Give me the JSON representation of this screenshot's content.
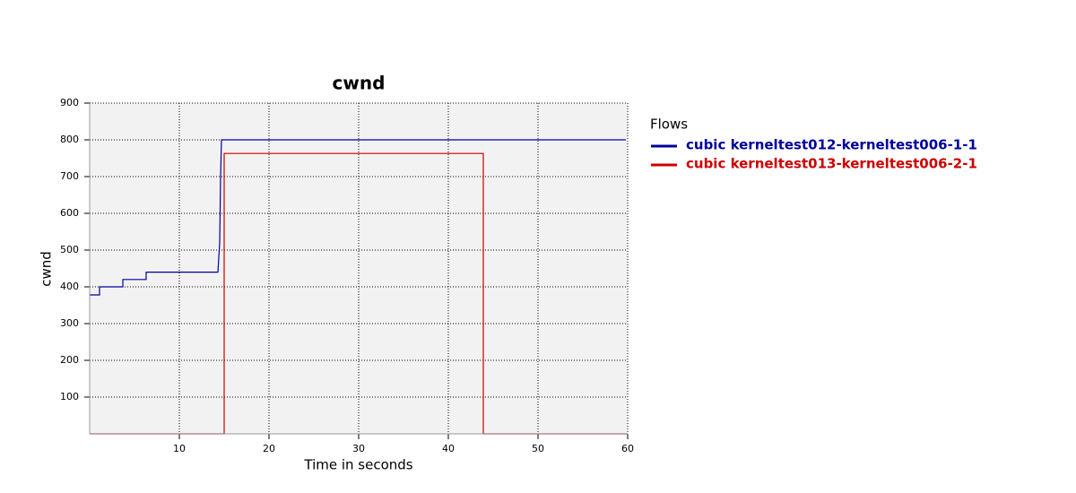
{
  "chart_data": {
    "type": "line",
    "title": "cwnd",
    "x_label": "Time in seconds",
    "y_label": "cwnd",
    "legend_title": "Flows",
    "xlim": [
      0,
      60
    ],
    "xticks": [
      10,
      20,
      30,
      40,
      50,
      60
    ],
    "ylim": [
      0,
      900
    ],
    "yticks": [
      100,
      200,
      300,
      400,
      500,
      600,
      700,
      800,
      900
    ],
    "grid": true,
    "series": [
      {
        "name": "cubic kerneltest012-kerneltest006-1-1",
        "color": "#00009c",
        "x": [
          0,
          1.1,
          1.1,
          3.7,
          3.7,
          6.3,
          6.3,
          14.3,
          14.5,
          14.6,
          14.7,
          59.8
        ],
        "values": [
          378,
          378,
          400,
          400,
          420,
          420,
          440,
          440,
          520,
          700,
          800,
          800
        ]
      },
      {
        "name": "cubic kerneltest013-kerneltest006-2-1",
        "color": "#cc0000",
        "x": [
          0,
          15,
          15,
          43.9,
          43.9,
          60
        ],
        "values": [
          0,
          0,
          763,
          763,
          0,
          0
        ]
      }
    ]
  }
}
